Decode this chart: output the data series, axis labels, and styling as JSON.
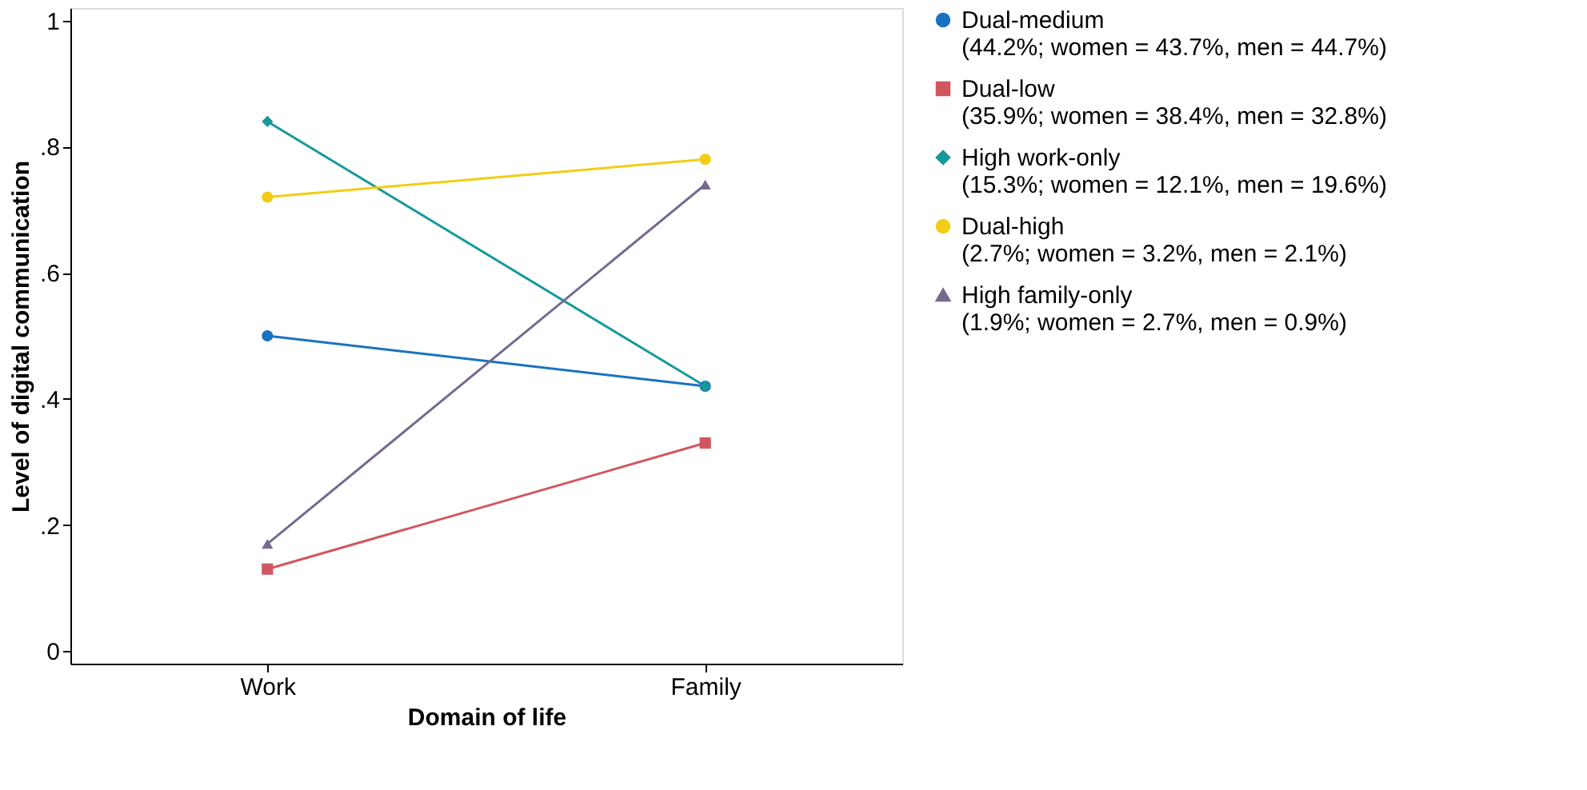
{
  "chart_data": {
    "type": "line",
    "xlabel": "Domain of life",
    "ylabel": "Level of digital communication",
    "categories": [
      "Work",
      "Family"
    ],
    "series": [
      {
        "name": "Dual-medium\n(44.2%; women = 43.7%, men = 44.7%)",
        "color": "#1a72c0",
        "marker": "circle",
        "values": [
          0.5,
          0.42
        ]
      },
      {
        "name": "Dual-low\n(35.9%; women = 38.4%, men = 32.8%)",
        "color": "#d0575f",
        "marker": "square",
        "values": [
          0.13,
          0.33
        ]
      },
      {
        "name": "High work-only\n(15.3%; women = 12.1%, men = 19.6%)",
        "color": "#16999a",
        "marker": "diamond",
        "values": [
          0.84,
          0.42
        ]
      },
      {
        "name": "Dual-high\n(2.7%; women = 3.2%, men = 2.1%)",
        "color": "#f2cd14",
        "marker": "circle",
        "values": [
          0.72,
          0.78
        ]
      },
      {
        "name": "High family-only\n(1.9%; women = 2.7%, men = 0.9%)",
        "color": "#76688f",
        "marker": "triangle",
        "values": [
          0.17,
          0.74
        ]
      }
    ],
    "ylim": [
      -0.02,
      1.02
    ],
    "yticks": [
      0,
      {
        "value": 0.2,
        "label": ".2"
      },
      {
        "value": 0.4,
        "label": ".4"
      },
      {
        "value": 0.6,
        "label": ".6"
      },
      {
        "value": 0.8,
        "label": ".8"
      },
      1
    ],
    "grid": false,
    "legend": "right",
    "line_style": "solid"
  }
}
